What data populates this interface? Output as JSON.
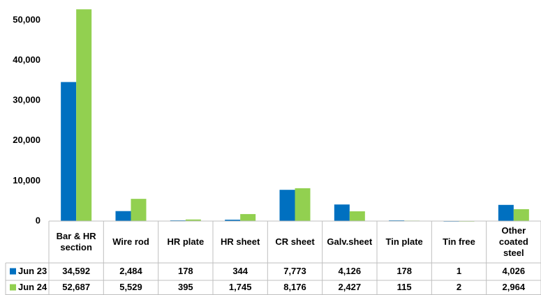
{
  "chart_data": {
    "type": "bar",
    "categories": [
      "Bar & HR section",
      "Wire rod",
      "HR plate",
      "HR sheet",
      "CR sheet",
      "Galv.sheet",
      "Tin plate",
      "Tin free",
      "Other coated steel"
    ],
    "series": [
      {
        "name": "Jun 23",
        "color": "#0070c0",
        "values": [
          34592,
          2484,
          178,
          344,
          7773,
          4126,
          178,
          1,
          4026
        ],
        "value_labels": [
          "34,592",
          "2,484",
          "178",
          "344",
          "7,773",
          "4,126",
          "178",
          "1",
          "4,026"
        ]
      },
      {
        "name": "Jun 24",
        "color": "#92d050",
        "values": [
          52687,
          5529,
          395,
          1745,
          8176,
          2427,
          115,
          2,
          2964
        ],
        "value_labels": [
          "52,687",
          "5,529",
          "395",
          "1,745",
          "8,176",
          "2,427",
          "115",
          "2",
          "2,964"
        ]
      }
    ],
    "ylim": [
      0,
      55000
    ],
    "yticks": [
      0,
      {
        "value": 10000,
        "label": "10,000"
      },
      {
        "value": 20000,
        "label": "20,000"
      },
      {
        "value": 30000,
        "label": "30,000"
      },
      {
        "value": 40000,
        "label": "40,000"
      },
      {
        "value": 50000,
        "label": "50,000"
      }
    ]
  }
}
